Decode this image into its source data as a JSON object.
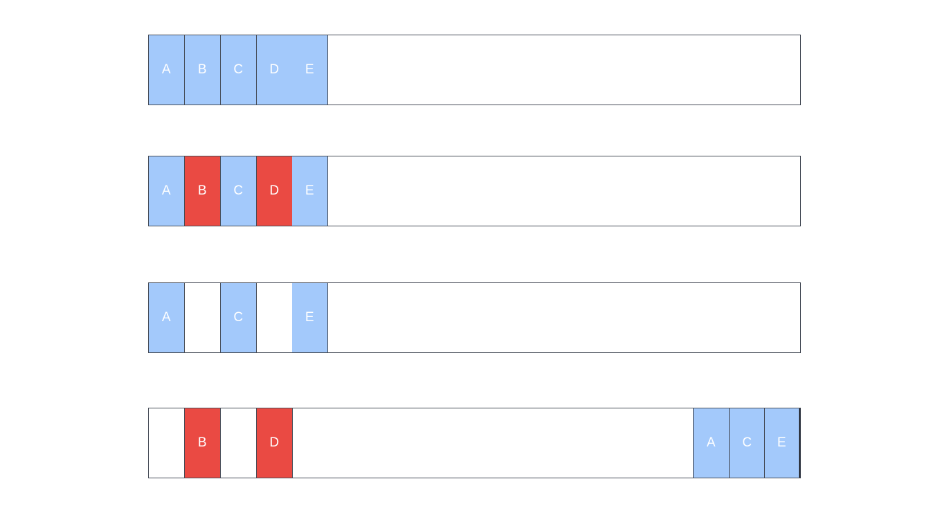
{
  "colors": {
    "blue": "#a3c9fb",
    "red": "#ea4a43",
    "empty": "#ffffff",
    "border": "#444a55"
  },
  "rows": [
    {
      "cells": [
        {
          "label": "A",
          "color": "blue"
        },
        {
          "label": "B",
          "color": "blue"
        },
        {
          "label": "C",
          "color": "blue"
        },
        {
          "label": "D",
          "color": "blue"
        },
        {
          "label": "E",
          "color": "blue"
        }
      ]
    },
    {
      "cells": [
        {
          "label": "A",
          "color": "blue"
        },
        {
          "label": "B",
          "color": "red"
        },
        {
          "label": "C",
          "color": "blue"
        },
        {
          "label": "D",
          "color": "red"
        },
        {
          "label": "E",
          "color": "blue"
        }
      ]
    },
    {
      "cells": [
        {
          "label": "A",
          "color": "blue"
        },
        {
          "label": "",
          "color": "empty"
        },
        {
          "label": "C",
          "color": "blue"
        },
        {
          "label": "",
          "color": "empty"
        },
        {
          "label": "E",
          "color": "blue"
        }
      ]
    },
    {
      "cells": [
        {
          "label": "",
          "color": "empty"
        },
        {
          "label": "B",
          "color": "red"
        },
        {
          "label": "",
          "color": "empty"
        },
        {
          "label": "D",
          "color": "red"
        }
      ],
      "right_cells": [
        {
          "label": "A",
          "color": "blue"
        },
        {
          "label": "C",
          "color": "blue"
        },
        {
          "label": "E",
          "color": "blue"
        }
      ]
    }
  ]
}
